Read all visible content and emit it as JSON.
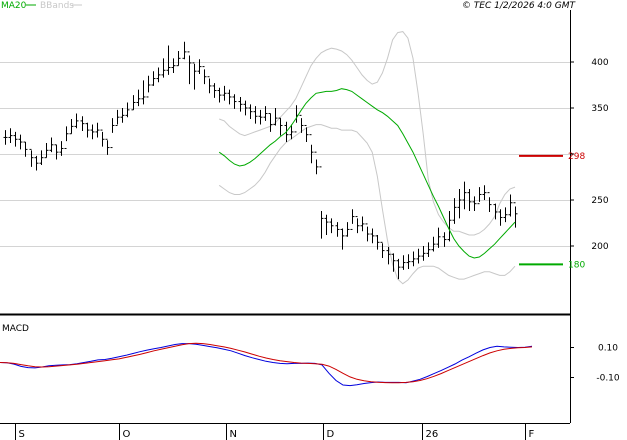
{
  "legend": {
    "ma20_label": "MA20",
    "bbands_label": "BBands",
    "ma20_color": "#00aa00",
    "bbands_color": "#c8c8c8"
  },
  "header": {
    "timestamp": "© TEC 1/2/2026 4:0 GMT"
  },
  "macd_panel": {
    "title": "MACD"
  },
  "chart_data": [
    {
      "type": "candlestick",
      "title": "",
      "xlabel": "",
      "ylabel": "",
      "ylim": [
        115,
        475
      ],
      "yticks": [
        200,
        250,
        300,
        350,
        400
      ],
      "ytick_labels": [
        "200",
        "250",
        "",
        "350",
        "400"
      ],
      "x_tick_labels": [
        "S",
        "O",
        "N",
        "D",
        "26",
        "F"
      ],
      "grid": true,
      "horizontal_levels": [
        {
          "label": "298",
          "value": 298,
          "color": "#cc0000"
        },
        {
          "label": "180",
          "value": 180,
          "color": "#00aa00"
        }
      ],
      "close": [
        318,
        320,
        316,
        313,
        305,
        296,
        290,
        296,
        304,
        310,
        302,
        306,
        322,
        330,
        336,
        333,
        326,
        324,
        326,
        316,
        307,
        331,
        340,
        342,
        348,
        356,
        360,
        362,
        375,
        382,
        386,
        391,
        394,
        396,
        404,
        411,
        399,
        390,
        395,
        384,
        374,
        369,
        364,
        366,
        362,
        357,
        354,
        350,
        346,
        341,
        340,
        344,
        332,
        339,
        331,
        321,
        324,
        342,
        331,
        321,
        302,
        286,
        230,
        226,
        222,
        218,
        211,
        218,
        232,
        222,
        224,
        213,
        211,
        204,
        195,
        191,
        184,
        177,
        182,
        183,
        186,
        189,
        192,
        196,
        202,
        210,
        207,
        228,
        242,
        250,
        258,
        248,
        246,
        256,
        258,
        245,
        237,
        231,
        234,
        247,
        235
      ],
      "high": [
        326,
        328,
        324,
        321,
        313,
        304,
        298,
        304,
        312,
        318,
        310,
        314,
        330,
        338,
        344,
        341,
        334,
        332,
        334,
        324,
        315,
        339,
        348,
        350,
        356,
        364,
        370,
        380,
        385,
        390,
        394,
        404,
        418,
        404,
        412,
        422,
        407,
        398,
        403,
        392,
        382,
        377,
        372,
        374,
        370,
        365,
        362,
        358,
        354,
        352,
        348,
        352,
        344,
        350,
        339,
        335,
        332,
        353,
        339,
        329,
        310,
        294,
        238,
        234,
        230,
        226,
        219,
        226,
        240,
        230,
        232,
        221,
        219,
        212,
        203,
        199,
        192,
        186,
        190,
        191,
        194,
        197,
        200,
        204,
        210,
        220,
        215,
        238,
        252,
        262,
        270,
        262,
        254,
        264,
        266,
        253,
        246,
        240,
        242,
        256,
        243
      ],
      "low": [
        310,
        312,
        308,
        305,
        297,
        286,
        282,
        288,
        296,
        302,
        294,
        298,
        314,
        322,
        328,
        325,
        318,
        316,
        318,
        308,
        299,
        323,
        332,
        334,
        340,
        348,
        352,
        354,
        367,
        374,
        378,
        383,
        386,
        388,
        396,
        403,
        376,
        370,
        387,
        376,
        366,
        361,
        356,
        358,
        354,
        349,
        346,
        342,
        338,
        333,
        332,
        336,
        324,
        331,
        320,
        313,
        316,
        334,
        323,
        313,
        290,
        278,
        208,
        212,
        214,
        210,
        196,
        210,
        224,
        214,
        216,
        205,
        203,
        196,
        187,
        180,
        172,
        164,
        174,
        175,
        178,
        181,
        184,
        188,
        194,
        198,
        199,
        205,
        224,
        230,
        240,
        238,
        238,
        248,
        250,
        237,
        229,
        222,
        226,
        232,
        220
      ],
      "ma20": [
        302,
        298,
        293,
        289,
        287,
        288,
        291,
        295,
        300,
        305,
        310,
        314,
        319,
        323,
        330,
        338,
        347,
        355,
        361,
        366,
        367,
        368,
        368,
        369,
        371,
        370,
        368,
        364,
        360,
        356,
        352,
        348,
        345,
        341,
        336,
        331,
        322,
        312,
        302,
        290,
        278,
        266,
        254,
        243,
        231,
        219,
        208,
        200,
        194,
        189,
        187,
        188,
        192,
        197,
        202,
        208,
        214,
        220,
        226
      ],
      "bb_upper": [
        338,
        336,
        330,
        326,
        322,
        320,
        322,
        324,
        326,
        328,
        330,
        334,
        340,
        346,
        352,
        360,
        372,
        384,
        396,
        404,
        410,
        413,
        415,
        414,
        412,
        408,
        402,
        394,
        386,
        380,
        376,
        378,
        388,
        404,
        424,
        432,
        433,
        426,
        404,
        366,
        322,
        272,
        248,
        234,
        226,
        220,
        216,
        216,
        214,
        212,
        212,
        214,
        218,
        224,
        232,
        246,
        256,
        262,
        264
      ],
      "bb_lower": [
        266,
        262,
        258,
        256,
        256,
        258,
        262,
        266,
        272,
        280,
        290,
        298,
        306,
        312,
        316,
        320,
        324,
        328,
        330,
        332,
        332,
        330,
        328,
        328,
        326,
        326,
        326,
        324,
        318,
        312,
        302,
        276,
        240,
        206,
        180,
        164,
        159,
        163,
        170,
        176,
        178,
        178,
        178,
        176,
        172,
        168,
        166,
        164,
        164,
        166,
        168,
        170,
        172,
        172,
        170,
        168,
        168,
        172,
        178
      ],
      "ma_start_index": 42
    },
    {
      "type": "line",
      "title": "MACD",
      "ylim": [
        -15.5,
        14
      ],
      "yticks": [
        10,
        -10
      ],
      "ytick_labels": [
        "0.10",
        "-0.10"
      ],
      "series": [
        {
          "color": "#0000dd",
          "values": [
            0.0,
            -0.2,
            -1.1,
            -2.6,
            -3.4,
            -3.6,
            -3.0,
            -2.2,
            -1.8,
            -1.6,
            -1.4,
            -0.8,
            0.0,
            0.8,
            1.7,
            2.0,
            2.8,
            3.8,
            4.8,
            6.0,
            7.2,
            8.3,
            9.2,
            10.0,
            11.0,
            12.0,
            12.6,
            12.6,
            12.2,
            11.4,
            10.6,
            9.8,
            8.8,
            7.8,
            6.2,
            4.6,
            3.2,
            2.0,
            0.8,
            0.0,
            -0.6,
            -0.8,
            -0.6,
            -0.6,
            -0.4,
            -0.6,
            -1.6,
            -7.2,
            -12.0,
            -15.0,
            -15.4,
            -14.8,
            -14.0,
            -13.4,
            -13.0,
            -13.3,
            -13.3,
            -13.3,
            -13.5,
            -12.4,
            -11.2,
            -9.4,
            -7.4,
            -5.4,
            -3.2,
            -1.0,
            1.6,
            3.8,
            6.2,
            8.4,
            10.0,
            10.8,
            10.4,
            10.2,
            10.0,
            10.2,
            10.8
          ]
        },
        {
          "color": "#cc0000",
          "values": [
            0.0,
            -0.2,
            -0.6,
            -1.4,
            -2.2,
            -2.8,
            -3.0,
            -2.8,
            -2.4,
            -2.0,
            -1.6,
            -1.2,
            -0.6,
            0.0,
            0.6,
            1.2,
            1.8,
            2.4,
            3.4,
            4.4,
            5.4,
            6.6,
            7.8,
            8.8,
            9.8,
            10.8,
            11.8,
            12.6,
            12.8,
            12.6,
            12.0,
            11.2,
            10.4,
            9.4,
            8.2,
            7.0,
            5.6,
            4.2,
            3.0,
            2.0,
            1.2,
            0.6,
            0.0,
            -0.4,
            -0.6,
            -0.8,
            -1.2,
            -2.4,
            -4.6,
            -7.2,
            -9.6,
            -11.2,
            -12.2,
            -12.8,
            -13.2,
            -13.4,
            -13.5,
            -13.5,
            -13.3,
            -12.8,
            -12.0,
            -10.8,
            -9.2,
            -7.4,
            -5.4,
            -3.4,
            -1.4,
            0.6,
            2.6,
            4.6,
            6.4,
            7.8,
            8.8,
            9.4,
            9.8,
            10.0,
            10.4
          ]
        }
      ]
    }
  ]
}
